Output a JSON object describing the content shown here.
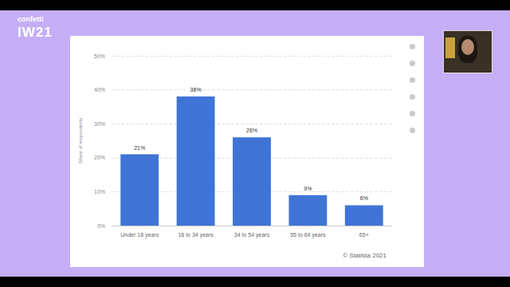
{
  "frame": {
    "brand": "confetti",
    "event": "IW21"
  },
  "chart_data": {
    "type": "bar",
    "y_label": "Share of respondents",
    "categories": [
      "Under 18 years",
      "18 to 34 years",
      "34 to 54 years",
      "55 to 64 years",
      "65+"
    ],
    "values": [
      21,
      38,
      26,
      9,
      6
    ],
    "value_labels": [
      "21%",
      "38%",
      "26%",
      "9%",
      "6%"
    ],
    "color": "#3f74d6",
    "ylim": [
      0,
      50
    ],
    "yticks": [
      {
        "value": 0,
        "label": "0%"
      },
      {
        "value": 10,
        "label": "10%"
      },
      {
        "value": 20,
        "label": "20%"
      },
      {
        "value": 30,
        "label": "30%"
      },
      {
        "value": 40,
        "label": "40%"
      },
      {
        "value": 50,
        "label": "50%"
      }
    ],
    "grid": true,
    "data_labels": true,
    "annotations": [
      "© Statista 2021"
    ]
  }
}
